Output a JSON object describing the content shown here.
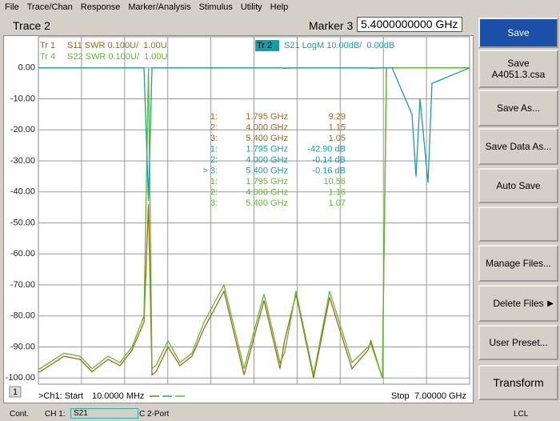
{
  "menu": [
    "File",
    "Trace/Chan",
    "Response",
    "Marker/Analysis",
    "Stimulus",
    "Utility",
    "Help"
  ],
  "header": {
    "title": "Trace 2",
    "marker_label": "Marker 3",
    "marker_value": "5.4000000000 GHz"
  },
  "traces": [
    {
      "id": "Tr 1",
      "desc": "S11 SWR 0.100U/  1.00U",
      "color": "#a0661a"
    },
    {
      "id": "Tr 4",
      "desc": "S22 SWR 0.100U/  1.00U",
      "color": "#5dbb2a"
    },
    {
      "id": "Tr 2",
      "desc": "S21 LogM 10.00dB/  0.00dB",
      "color": "#1a9ca8"
    }
  ],
  "marker_table": [
    {
      "color": "#a0661a",
      "rows": [
        [
          "1:",
          "1.795 GHz",
          "9.29"
        ],
        [
          "2:",
          "4.000 GHz",
          "1.15"
        ],
        [
          "3:",
          "5.400 GHz",
          "1.05"
        ]
      ]
    },
    {
      "color": "#1a9ca8",
      "rows": [
        [
          "1:",
          "1.795 GHz",
          "-42.90 dB"
        ],
        [
          "2:",
          "4.000 GHz",
          "-0.14 dB"
        ],
        [
          "> 3:",
          "5.400 GHz",
          "-0.16 dB"
        ]
      ]
    },
    {
      "color": "#5dbb2a",
      "rows": [
        [
          "1:",
          "1.795 GHz",
          "10.56"
        ],
        [
          "2:",
          "4.000 GHz",
          "1.16"
        ],
        [
          "3:",
          "5.400 GHz",
          "1.07"
        ]
      ]
    }
  ],
  "chart_data": {
    "type": "line",
    "x": [
      0.01,
      0.036,
      0.425,
      0.684,
      0.879,
      1.138,
      1.333,
      1.527,
      1.722,
      1.795,
      1.851,
      1.916,
      2.111,
      2.305,
      2.5,
      2.694,
      3.019,
      3.343,
      3.667,
      3.926,
      4.0,
      4.186,
      4.471,
      4.73,
      5.094,
      5.353,
      5.4,
      5.587,
      5.652,
      5.743,
      6.066,
      6.131,
      6.196,
      6.326,
      6.391,
      7.0
    ],
    "xlim": [
      0.01,
      7.0
    ],
    "ylim": [
      -102,
      10
    ],
    "yticks": [
      {
        "value": 0,
        "label": "0.00"
      },
      {
        "value": -10,
        "label": "-10.00"
      },
      {
        "value": -20,
        "label": "-20.00"
      },
      {
        "value": -30,
        "label": "-30.00"
      },
      {
        "value": -40,
        "label": "-40.00"
      },
      {
        "value": -50,
        "label": "-50.00"
      },
      {
        "value": -60,
        "label": "-60.00"
      },
      {
        "value": -70,
        "label": "-70.00"
      },
      {
        "value": -80,
        "label": "-80.00"
      },
      {
        "value": -90,
        "label": "-90.00"
      },
      {
        "value": -100,
        "label": "-100.00"
      }
    ],
    "series": [
      {
        "name": "S11",
        "color": "#a0661a",
        "values": [
          -98,
          -98,
          -93,
          -94,
          -98,
          -94,
          -96,
          -91,
          -82,
          -44,
          -99,
          -98,
          -90,
          -96,
          -93,
          -84,
          -72,
          -99,
          -75,
          -97,
          -88,
          -73,
          -100,
          -74,
          -97,
          -91,
          -88,
          -100,
          0,
          0,
          0,
          0,
          0,
          0,
          0,
          0
        ]
      },
      {
        "name": "S22",
        "color": "#5dbb2a",
        "values": [
          -97,
          -97,
          -92,
          -93,
          -97,
          -93,
          -95,
          -90,
          -80,
          0,
          -97,
          -96,
          -88,
          -95,
          -92,
          -82,
          -70,
          -97,
          -73,
          -95,
          -92,
          -72,
          -99,
          -72,
          -95,
          -90,
          -89,
          -100,
          0,
          0,
          0,
          0,
          0,
          0,
          0,
          0
        ]
      },
      {
        "name": "S21",
        "color": "#1a9ca8",
        "values": [
          0,
          0,
          0,
          0,
          0,
          0,
          0,
          0,
          0,
          -42.9,
          0,
          0,
          0,
          0,
          0,
          0,
          0,
          0,
          0,
          0,
          -0.14,
          0,
          0,
          0,
          0,
          0,
          -0.16,
          0,
          0,
          0,
          -15,
          -35,
          -10,
          -37,
          -5,
          0
        ]
      }
    ]
  },
  "footer": {
    "channel": "1",
    "start_label": ">Ch1: Start",
    "start_value": "10.0000 MHz",
    "stop_label": "Stop",
    "stop_value": "7.00000 GHz"
  },
  "softkeys": [
    [
      "Save"
    ],
    [
      "Save",
      "A4051.3.csa"
    ],
    [
      "Save As..."
    ],
    [
      "Save Data As..."
    ],
    [
      "Auto Save"
    ],
    [],
    [
      "Manage Files..."
    ],
    [
      "Delete Files"
    ],
    [
      "User Preset..."
    ],
    [
      "Transform"
    ]
  ],
  "status": [
    "Cont.",
    "CH 1:",
    "S21",
    "C  2-Port",
    "LCL"
  ]
}
